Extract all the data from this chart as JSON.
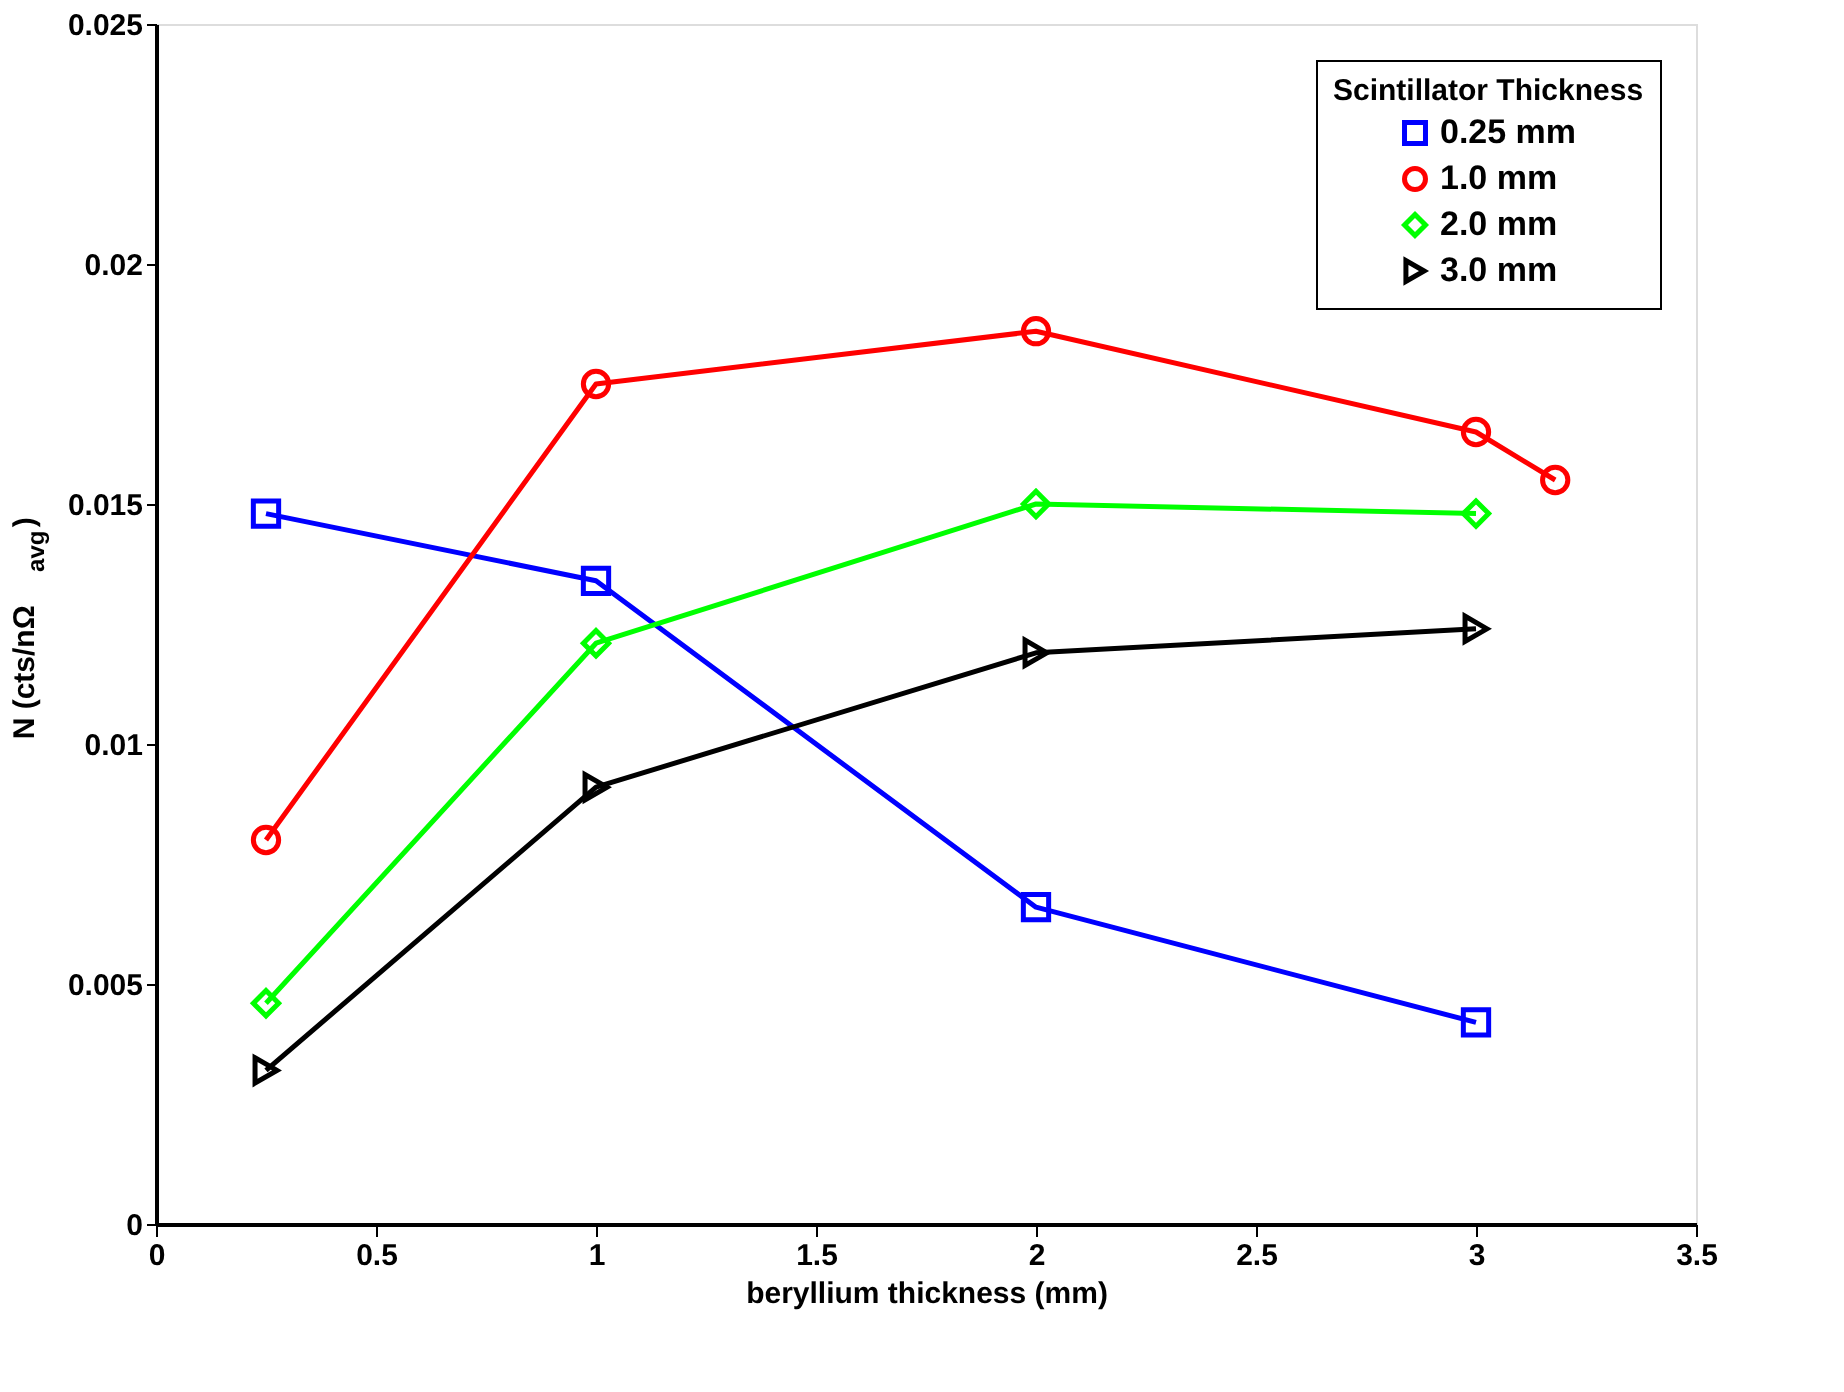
{
  "chart_data": {
    "type": "line",
    "xlabel": "beryllium thickness (mm)",
    "ylabel": "N (cts/nΩ$_{avg}$)",
    "legend_title": "Scintillator Thickness",
    "xlim": [
      0,
      3.5
    ],
    "xticks": [
      0,
      0.5,
      1,
      1.5,
      2,
      2.5,
      3,
      3.5
    ],
    "ylim": [
      0,
      0.025
    ],
    "yticks": [
      0,
      0.005,
      0.01,
      0.015,
      0.02,
      0.025
    ],
    "grid": false,
    "legend": "top right",
    "line_style": "solid",
    "series": [
      {
        "name": "0.25 mm",
        "color": "#0000ff",
        "marker": "square",
        "x": [
          0.25,
          1,
          2,
          3
        ],
        "values": [
          0.0148,
          0.0134,
          0.0066,
          0.0042
        ]
      },
      {
        "name": "1.0 mm",
        "color": "#ff0000",
        "marker": "circle",
        "x": [
          0.25,
          1,
          2,
          3,
          3.18
        ],
        "values": [
          0.008,
          0.0175,
          0.0186,
          0.0165,
          0.0155
        ]
      },
      {
        "name": "2.0 mm",
        "color": "#00ff00",
        "marker": "diamond",
        "x": [
          0.25,
          1,
          2,
          3
        ],
        "values": [
          0.0046,
          0.0121,
          0.015,
          0.0148
        ]
      },
      {
        "name": "3.0 mm",
        "color": "#000000",
        "marker": "triangle-right",
        "x": [
          0.25,
          1,
          2,
          3
        ],
        "values": [
          0.0032,
          0.0091,
          0.0119,
          0.0124
        ]
      }
    ]
  }
}
